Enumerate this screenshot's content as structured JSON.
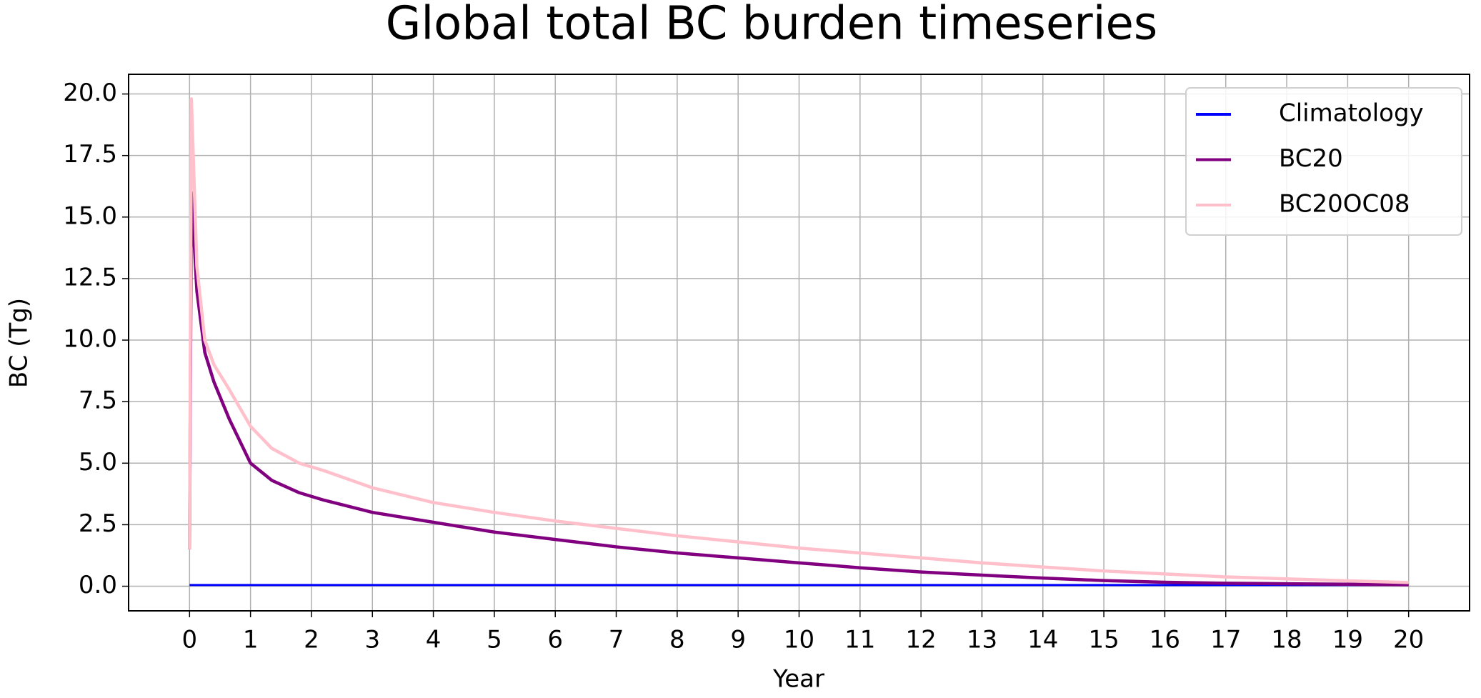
{
  "chart_data": {
    "type": "line",
    "title": "Global total BC burden timeseries",
    "xlabel": "Year",
    "ylabel": "BC (Tg)",
    "x": [
      0,
      0.03,
      0.12,
      0.25,
      0.4,
      0.65,
      1,
      1.35,
      1.8,
      2.2,
      3,
      4,
      5,
      6,
      7,
      8,
      9,
      10,
      11,
      12,
      13,
      14,
      15,
      16,
      17,
      18,
      19,
      20
    ],
    "series": [
      {
        "name": "Climatology",
        "color": "#0000ff",
        "values": [
          0.05,
          0.05,
          0.05,
          0.05,
          0.05,
          0.05,
          0.05,
          0.05,
          0.05,
          0.05,
          0.05,
          0.05,
          0.05,
          0.05,
          0.05,
          0.05,
          0.05,
          0.05,
          0.05,
          0.05,
          0.05,
          0.05,
          0.05,
          0.05,
          0.05,
          0.05,
          0.05,
          0.05
        ]
      },
      {
        "name": "BC20",
        "color": "#800080",
        "values": [
          1.5,
          16,
          12,
          9.5,
          8.3,
          6.8,
          5,
          4.3,
          3.8,
          3.5,
          3.0,
          2.6,
          2.2,
          1.9,
          1.6,
          1.35,
          1.15,
          0.95,
          0.75,
          0.58,
          0.45,
          0.33,
          0.23,
          0.16,
          0.12,
          0.1,
          0.08,
          0.06
        ]
      },
      {
        "name": "BC20OC08",
        "color": "#ffc0cb",
        "values": [
          1.5,
          19.8,
          13,
          10,
          9,
          8,
          6.5,
          5.6,
          5,
          4.7,
          4.0,
          3.4,
          3.0,
          2.65,
          2.35,
          2.05,
          1.8,
          1.55,
          1.35,
          1.15,
          0.95,
          0.78,
          0.62,
          0.5,
          0.38,
          0.3,
          0.22,
          0.15
        ]
      }
    ],
    "xlim": [
      -1,
      21
    ],
    "ylim": [
      -1,
      20.8
    ],
    "xticks": [
      0,
      1,
      2,
      3,
      4,
      5,
      6,
      7,
      8,
      9,
      10,
      11,
      12,
      13,
      14,
      15,
      16,
      17,
      18,
      19,
      20
    ],
    "yticks": [
      {
        "value": 0,
        "label": "0.0"
      },
      2.5,
      {
        "value": 5,
        "label": "5.0"
      },
      7.5,
      {
        "value": 10,
        "label": "10.0"
      },
      12.5,
      {
        "value": 15,
        "label": "15.0"
      },
      17.5,
      {
        "value": 20,
        "label": "20.0"
      }
    ],
    "grid": true,
    "legend": "upper right"
  }
}
